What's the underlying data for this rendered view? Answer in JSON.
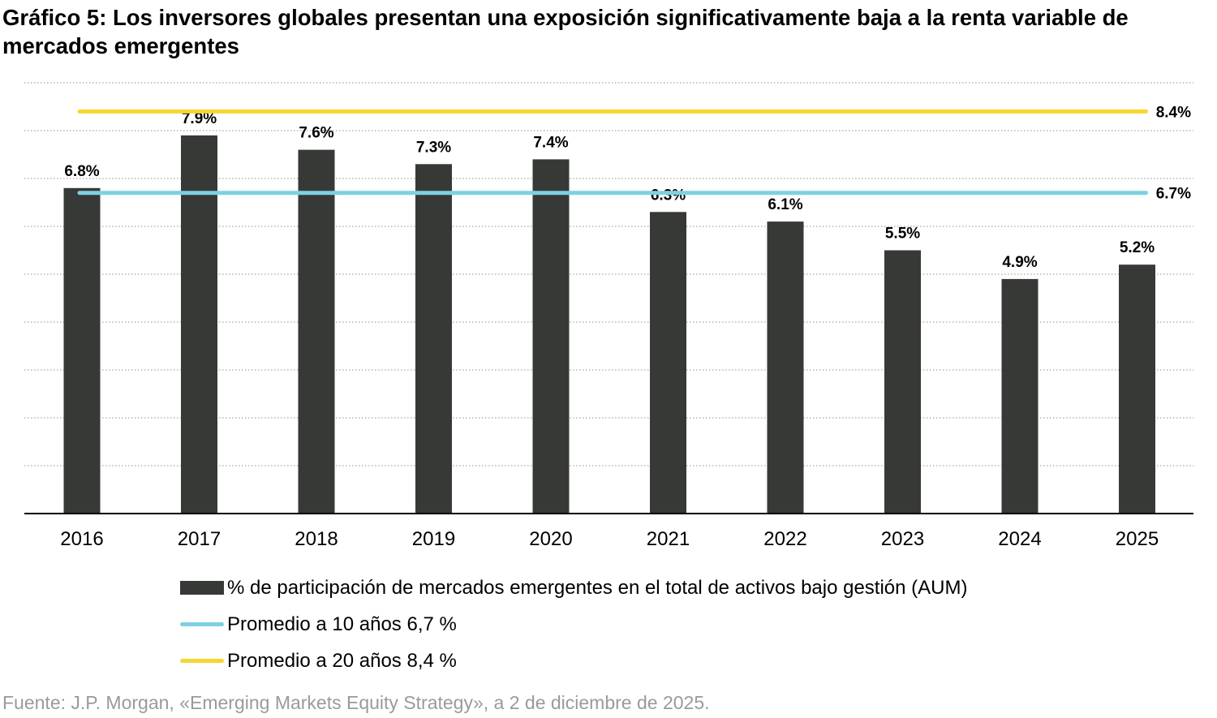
{
  "title": "Gráfico 5: Los inversores globales presentan una exposición significativamente baja a la renta variable de mercados emergentes",
  "source": "Fuente: J.P. Morgan, «Emerging Markets Equity Strategy», a 2 de diciembre de 2025.",
  "colors": {
    "bars": "#373936",
    "avg10": "#7dd1e0",
    "avg20": "#f7d630",
    "grid": "#a6a6a6",
    "axis": "#000000"
  },
  "chart_data": {
    "type": "bar",
    "categories": [
      "2016",
      "2017",
      "2018",
      "2019",
      "2020",
      "2021",
      "2022",
      "2023",
      "2024",
      "2025"
    ],
    "series": [
      {
        "name": "% de participación de mercados emergentes en el total de activos bajo gestión (AUM)",
        "values": [
          6.8,
          7.9,
          7.6,
          7.3,
          7.4,
          6.3,
          6.1,
          5.5,
          4.9,
          5.2
        ],
        "labels": [
          "6.8%",
          "7.9%",
          "7.6%",
          "7.3%",
          "7.4%",
          "6.3%",
          "6.1%",
          "5.5%",
          "4.9%",
          "5.2%"
        ]
      }
    ],
    "reference_lines": [
      {
        "name": "Promedio a 10 años 6,7 %",
        "value": 6.7,
        "label": "6.7%",
        "color_key": "avg10"
      },
      {
        "name": "Promedio a 20 años 8,4 %",
        "value": 8.4,
        "label": "8.4%",
        "color_key": "avg20"
      }
    ],
    "ylim": [
      0,
      9
    ],
    "grid": true,
    "legend_position": "bottom"
  }
}
